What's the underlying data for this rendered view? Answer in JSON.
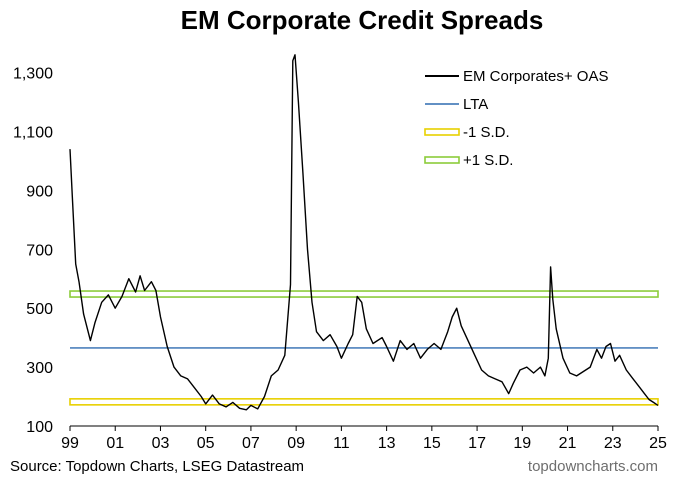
{
  "chart_data": {
    "type": "line",
    "title": "EM Corporate Credit Spreads",
    "xlabel": "",
    "ylabel": "",
    "x_tick_labels": [
      "99",
      "01",
      "03",
      "05",
      "07",
      "09",
      "11",
      "13",
      "15",
      "17",
      "19",
      "21",
      "23",
      "25"
    ],
    "x_ticks": [
      1999,
      2001,
      2003,
      2005,
      2007,
      2009,
      2011,
      2013,
      2015,
      2017,
      2019,
      2021,
      2023,
      2025
    ],
    "xlim": [
      1999,
      2025
    ],
    "y_ticks": [
      100,
      300,
      500,
      700,
      900,
      1100,
      1300
    ],
    "y_tick_labels": [
      "100",
      "300",
      "500",
      "700",
      "900",
      "1,100",
      "1,300"
    ],
    "ylim": [
      100,
      1390
    ],
    "grid": false,
    "legend_position": "top-right",
    "series": [
      {
        "name": "EM Corporates+ OAS",
        "color": "#000000",
        "points": [
          [
            1999.0,
            1040
          ],
          [
            1999.1,
            880
          ],
          [
            1999.25,
            650
          ],
          [
            1999.4,
            590
          ],
          [
            1999.6,
            480
          ],
          [
            1999.9,
            390
          ],
          [
            2000.1,
            450
          ],
          [
            2000.4,
            520
          ],
          [
            2000.7,
            545
          ],
          [
            2001.0,
            500
          ],
          [
            2001.3,
            540
          ],
          [
            2001.6,
            600
          ],
          [
            2001.9,
            555
          ],
          [
            2002.1,
            610
          ],
          [
            2002.3,
            560
          ],
          [
            2002.6,
            590
          ],
          [
            2002.8,
            560
          ],
          [
            2003.0,
            470
          ],
          [
            2003.3,
            370
          ],
          [
            2003.6,
            300
          ],
          [
            2003.9,
            270
          ],
          [
            2004.2,
            260
          ],
          [
            2004.5,
            230
          ],
          [
            2004.8,
            200
          ],
          [
            2005.0,
            175
          ],
          [
            2005.3,
            205
          ],
          [
            2005.6,
            175
          ],
          [
            2005.9,
            165
          ],
          [
            2006.2,
            180
          ],
          [
            2006.5,
            160
          ],
          [
            2006.8,
            155
          ],
          [
            2007.0,
            170
          ],
          [
            2007.3,
            158
          ],
          [
            2007.6,
            200
          ],
          [
            2007.9,
            270
          ],
          [
            2008.2,
            290
          ],
          [
            2008.5,
            340
          ],
          [
            2008.75,
            580
          ],
          [
            2008.85,
            1340
          ],
          [
            2008.95,
            1360
          ],
          [
            2009.1,
            1200
          ],
          [
            2009.3,
            960
          ],
          [
            2009.5,
            700
          ],
          [
            2009.7,
            520
          ],
          [
            2009.9,
            420
          ],
          [
            2010.2,
            390
          ],
          [
            2010.5,
            410
          ],
          [
            2010.8,
            370
          ],
          [
            2011.0,
            330
          ],
          [
            2011.3,
            380
          ],
          [
            2011.5,
            410
          ],
          [
            2011.7,
            540
          ],
          [
            2011.9,
            520
          ],
          [
            2012.1,
            430
          ],
          [
            2012.4,
            380
          ],
          [
            2012.8,
            400
          ],
          [
            2013.0,
            370
          ],
          [
            2013.3,
            320
          ],
          [
            2013.6,
            390
          ],
          [
            2013.9,
            360
          ],
          [
            2014.2,
            380
          ],
          [
            2014.5,
            330
          ],
          [
            2014.8,
            360
          ],
          [
            2015.1,
            380
          ],
          [
            2015.4,
            360
          ],
          [
            2015.7,
            420
          ],
          [
            2015.9,
            470
          ],
          [
            2016.1,
            500
          ],
          [
            2016.3,
            440
          ],
          [
            2016.6,
            390
          ],
          [
            2016.9,
            340
          ],
          [
            2017.2,
            290
          ],
          [
            2017.5,
            270
          ],
          [
            2017.8,
            260
          ],
          [
            2018.1,
            250
          ],
          [
            2018.4,
            210
          ],
          [
            2018.6,
            245
          ],
          [
            2018.9,
            290
          ],
          [
            2019.2,
            300
          ],
          [
            2019.5,
            280
          ],
          [
            2019.8,
            300
          ],
          [
            2020.0,
            270
          ],
          [
            2020.15,
            330
          ],
          [
            2020.25,
            640
          ],
          [
            2020.35,
            530
          ],
          [
            2020.5,
            430
          ],
          [
            2020.8,
            330
          ],
          [
            2021.1,
            280
          ],
          [
            2021.4,
            270
          ],
          [
            2021.7,
            285
          ],
          [
            2022.0,
            300
          ],
          [
            2022.3,
            360
          ],
          [
            2022.5,
            330
          ],
          [
            2022.7,
            370
          ],
          [
            2022.9,
            380
          ],
          [
            2023.1,
            320
          ],
          [
            2023.3,
            340
          ],
          [
            2023.6,
            290
          ],
          [
            2023.9,
            260
          ],
          [
            2024.2,
            230
          ],
          [
            2024.4,
            210
          ],
          [
            2024.6,
            190
          ],
          [
            2024.8,
            180
          ],
          [
            2025.0,
            170
          ]
        ]
      },
      {
        "name": "LTA",
        "color": "#2e6bb0",
        "value": 365
      },
      {
        "name": "-1 S.D.",
        "color": "#e8d000",
        "value": 182
      },
      {
        "name": "+1 S.D.",
        "color": "#8ccc3a",
        "value": 548
      }
    ]
  },
  "footer": {
    "source": "Source: Topdown Charts, LSEG Datastream",
    "brand": "topdowncharts.com"
  }
}
